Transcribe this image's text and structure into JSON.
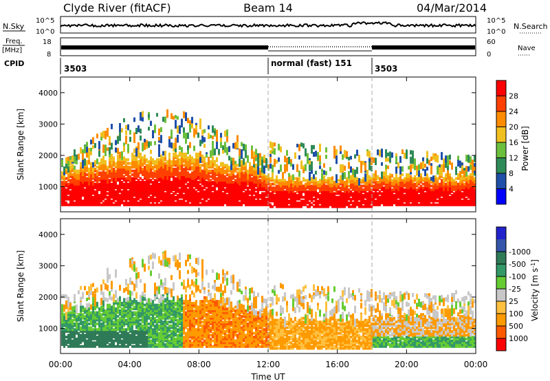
{
  "header": {
    "site": "Clyde River (fitACF)",
    "beam": "Beam 14",
    "date": "04/Mar/2014"
  },
  "noise_panel": {
    "left_label": "N.Sky",
    "right_label": "N.Search",
    "left_ticks": [
      "10^5",
      "10^0"
    ],
    "right_ticks": [
      "10^5",
      "10^0"
    ]
  },
  "freq_panel": {
    "left_label_1": "Freq.",
    "left_label_2": "[MHz]",
    "right_label": "Nave",
    "left_ticks": [
      "18",
      "8"
    ],
    "right_ticks": [
      "60",
      "0"
    ]
  },
  "cpid_panel": {
    "label": "CPID",
    "segments": [
      {
        "label": "3503",
        "start_hour": 0
      },
      {
        "label": "normal (fast)  151",
        "start_hour": 12
      },
      {
        "label": "3503",
        "start_hour": 18
      }
    ]
  },
  "colors": {
    "power": [
      "#0000ff",
      "#1f4fa8",
      "#2e8b57",
      "#6cbf3c",
      "#f0c020",
      "#ff8c00",
      "#ff4000",
      "#ff0000"
    ],
    "velocity": [
      "#ff0000",
      "#ff5a00",
      "#ff9a00",
      "#ffc040",
      "#c8c8c8",
      "#66cc33",
      "#339966",
      "#2f7a57",
      "#3355aa",
      "#2222cc"
    ]
  },
  "chart_data": [
    {
      "type": "heatmap",
      "name": "power",
      "ylabel": "Slant Range [km]",
      "yticks": [
        "1000",
        "2000",
        "3000",
        "4000"
      ],
      "ylim": [
        200,
        4500
      ],
      "colorbar_label": "Power [dB]",
      "colorbar_ticks": [
        "4",
        "8",
        "12",
        "16",
        "20",
        "24",
        "28"
      ],
      "colorbar_range": [
        0,
        32
      ]
    },
    {
      "type": "heatmap",
      "name": "velocity",
      "ylabel": "Slant Range [km]",
      "yticks": [
        "1000",
        "2000",
        "3000",
        "4000"
      ],
      "ylim": [
        200,
        4500
      ],
      "colorbar_label": "Velocity [m s",
      "colorbar_sup": "-1",
      "colorbar_close": "]",
      "colorbar_ticks": [
        "-1000",
        "-500",
        "-100",
        "-25",
        "25",
        "100",
        "500",
        "1000"
      ],
      "xlabel": "Time UT",
      "xticks": [
        "00:00",
        "04:00",
        "08:00",
        "12:00",
        "16:00",
        "20:00",
        "00:00"
      ],
      "xlim_hours": [
        0,
        24
      ]
    }
  ]
}
